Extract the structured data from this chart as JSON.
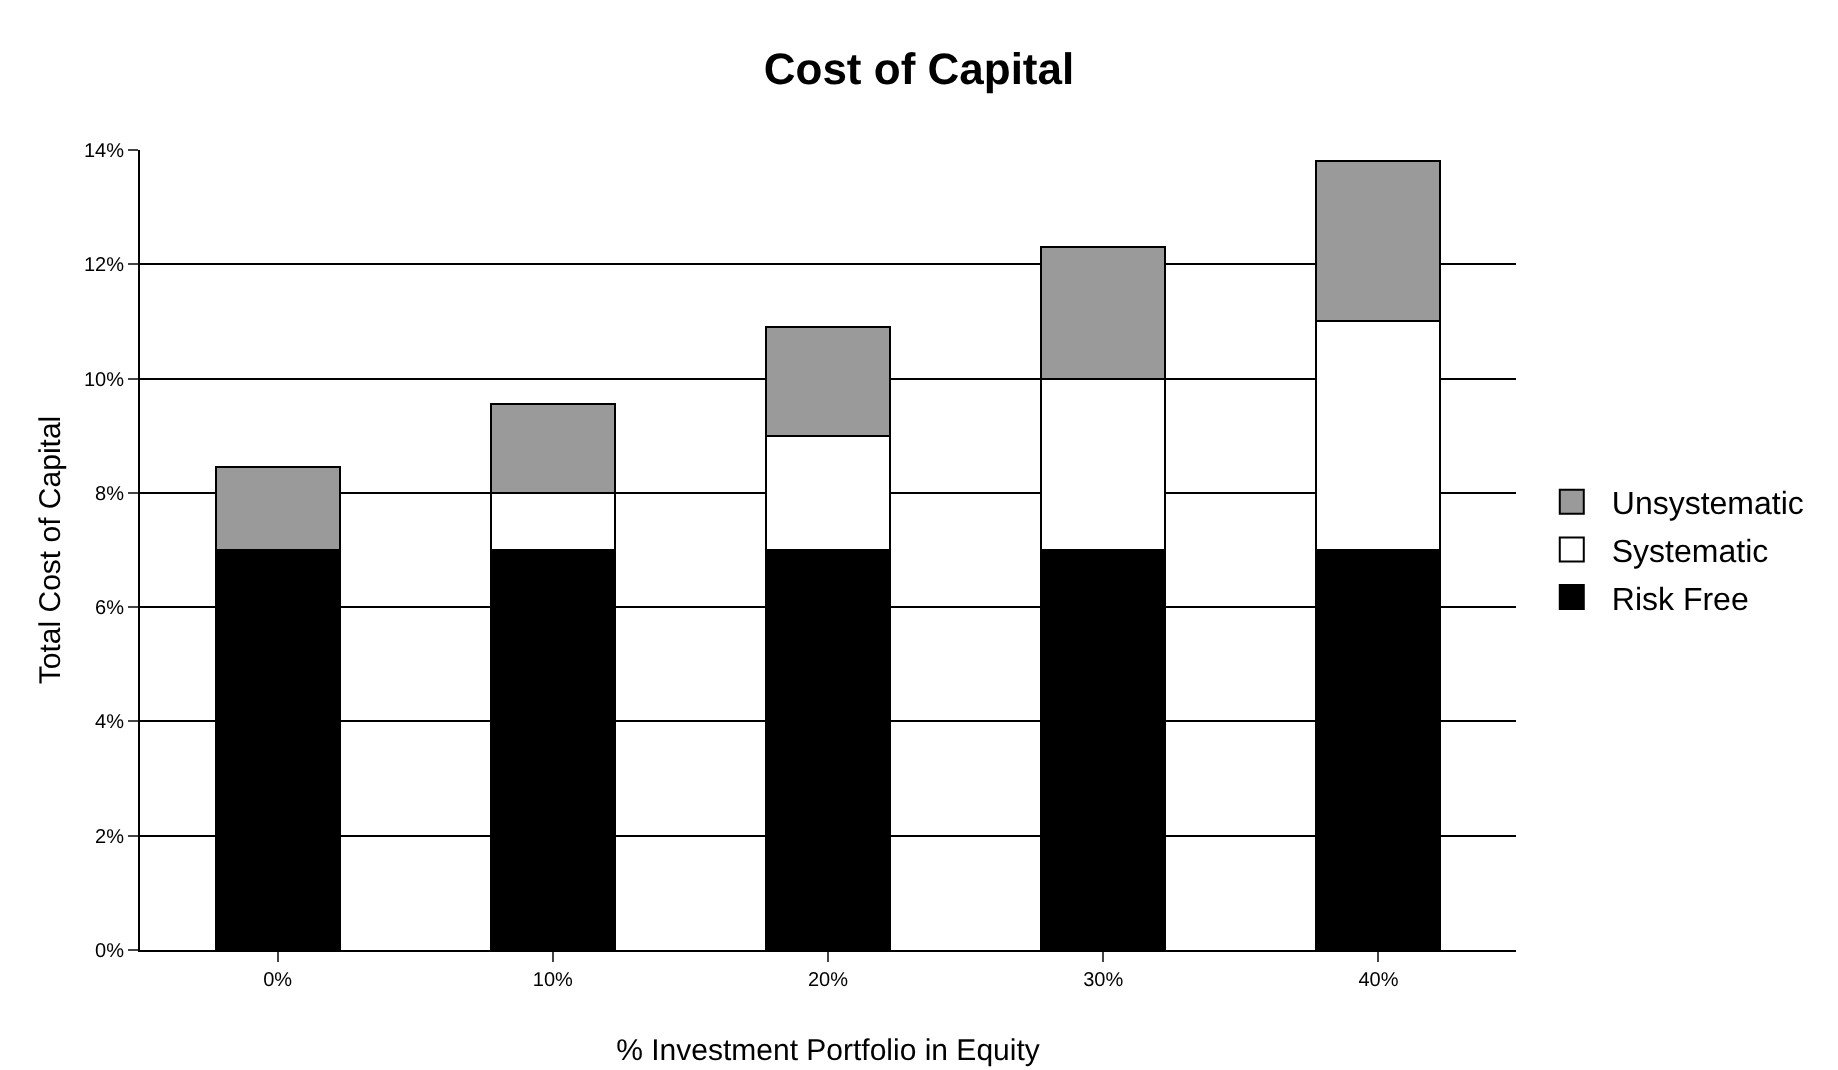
{
  "chart_data": {
    "type": "bar",
    "title": "Cost of Capital",
    "xlabel": "% Investment Portfolio in Equity",
    "ylabel": "Total Cost of Capital",
    "categories": [
      "0%",
      "10%",
      "20%",
      "30%",
      "40%"
    ],
    "stacked": true,
    "series": [
      {
        "name": "Risk Free",
        "color": "#000000",
        "values": [
          7,
          7,
          7,
          7,
          7
        ]
      },
      {
        "name": "Systematic",
        "color": "#ffffff",
        "values": [
          0,
          1,
          2,
          3,
          4
        ]
      },
      {
        "name": "Unsystematic",
        "color": "#9a9a9a",
        "values": [
          1.45,
          1.55,
          1.9,
          2.3,
          2.8
        ]
      }
    ],
    "ylim": [
      0,
      14
    ],
    "yticks": [
      {
        "value": 0,
        "label": "0%"
      },
      {
        "value": 2,
        "label": "2%"
      },
      {
        "value": 4,
        "label": "4%"
      },
      {
        "value": 6,
        "label": "6%"
      },
      {
        "value": 8,
        "label": "8%"
      },
      {
        "value": 10,
        "label": "10%"
      },
      {
        "value": 12,
        "label": "12%"
      },
      {
        "value": 14,
        "label": "14%"
      }
    ],
    "grid": "y",
    "legend": "right"
  }
}
